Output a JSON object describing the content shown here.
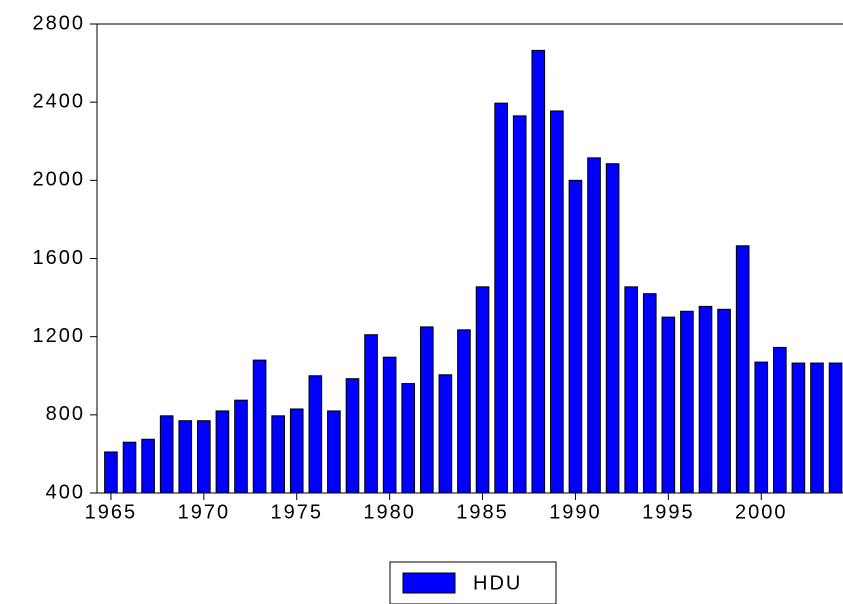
{
  "chart_data": {
    "type": "bar",
    "x": [
      1965,
      1966,
      1967,
      1968,
      1969,
      1970,
      1971,
      1972,
      1973,
      1974,
      1975,
      1976,
      1977,
      1978,
      1979,
      1980,
      1981,
      1982,
      1983,
      1984,
      1985,
      1986,
      1987,
      1988,
      1989,
      1990,
      1991,
      1992,
      1993,
      1994,
      1995,
      1996,
      1997,
      1998,
      1999,
      2000,
      2001,
      2002,
      2003,
      2004
    ],
    "series": [
      {
        "name": "HDU",
        "color": "#0000ff",
        "values": [
          610,
          660,
          675,
          795,
          770,
          770,
          820,
          875,
          1080,
          795,
          830,
          1000,
          820,
          985,
          1210,
          1095,
          960,
          1250,
          1005,
          1235,
          1455,
          2395,
          2330,
          2665,
          2355,
          2000,
          2115,
          2085,
          1455,
          1420,
          1300,
          1330,
          1355,
          1340,
          1665,
          1070,
          1145,
          1065,
          1065,
          1065
        ]
      }
    ],
    "xlim": [
      1964.25,
      2004.4
    ],
    "xticks": [
      1965,
      1970,
      1975,
      1980,
      1985,
      1990,
      1995,
      2000
    ],
    "ylim": [
      400,
      2800
    ],
    "yticks": [
      400,
      800,
      1200,
      1600,
      2000,
      2400,
      2800
    ]
  }
}
